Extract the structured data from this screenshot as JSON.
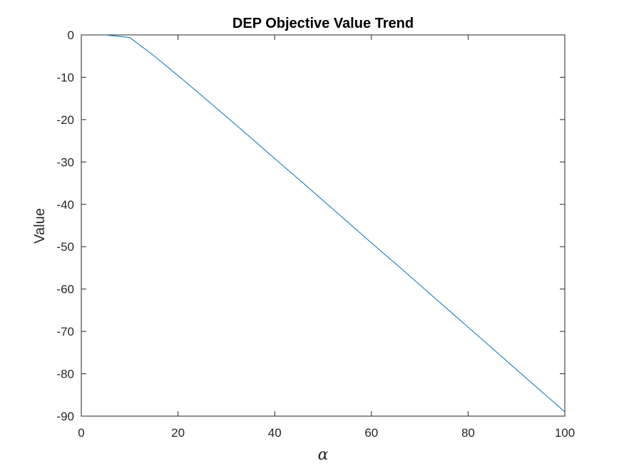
{
  "chart_data": {
    "type": "line",
    "title": "DEP Objective Value Trend",
    "xlabel": "α",
    "ylabel": "Value",
    "xlim": [
      0,
      100
    ],
    "ylim": [
      -90,
      0
    ],
    "xticks": [
      0,
      20,
      40,
      60,
      80,
      100
    ],
    "xtick_labels": [
      "0",
      "20",
      "40",
      "60",
      "80",
      "100"
    ],
    "yticks": [
      0,
      -10,
      -20,
      -30,
      -40,
      -50,
      -60,
      -70,
      -80,
      -90
    ],
    "ytick_labels": [
      "0",
      "-10",
      "-20",
      "-30",
      "-40",
      "-50",
      "-60",
      "-70",
      "-80",
      "-90"
    ],
    "grid": false,
    "legend": "none",
    "series": [
      {
        "color": "#0072BD",
        "x": [
          5,
          10,
          15,
          20,
          25,
          30,
          35,
          40,
          45,
          50,
          55,
          60,
          65,
          70,
          75,
          80,
          85,
          90,
          95,
          100
        ],
        "y": [
          0,
          -0.6,
          -4.9,
          -9.6,
          -14.4,
          -19.3,
          -24.2,
          -29.2,
          -34.1,
          -39.1,
          -44.1,
          -49.1,
          -54.0,
          -59.0,
          -64.0,
          -69.0,
          -74.0,
          -79.0,
          -84.0,
          -89.0
        ]
      }
    ]
  }
}
